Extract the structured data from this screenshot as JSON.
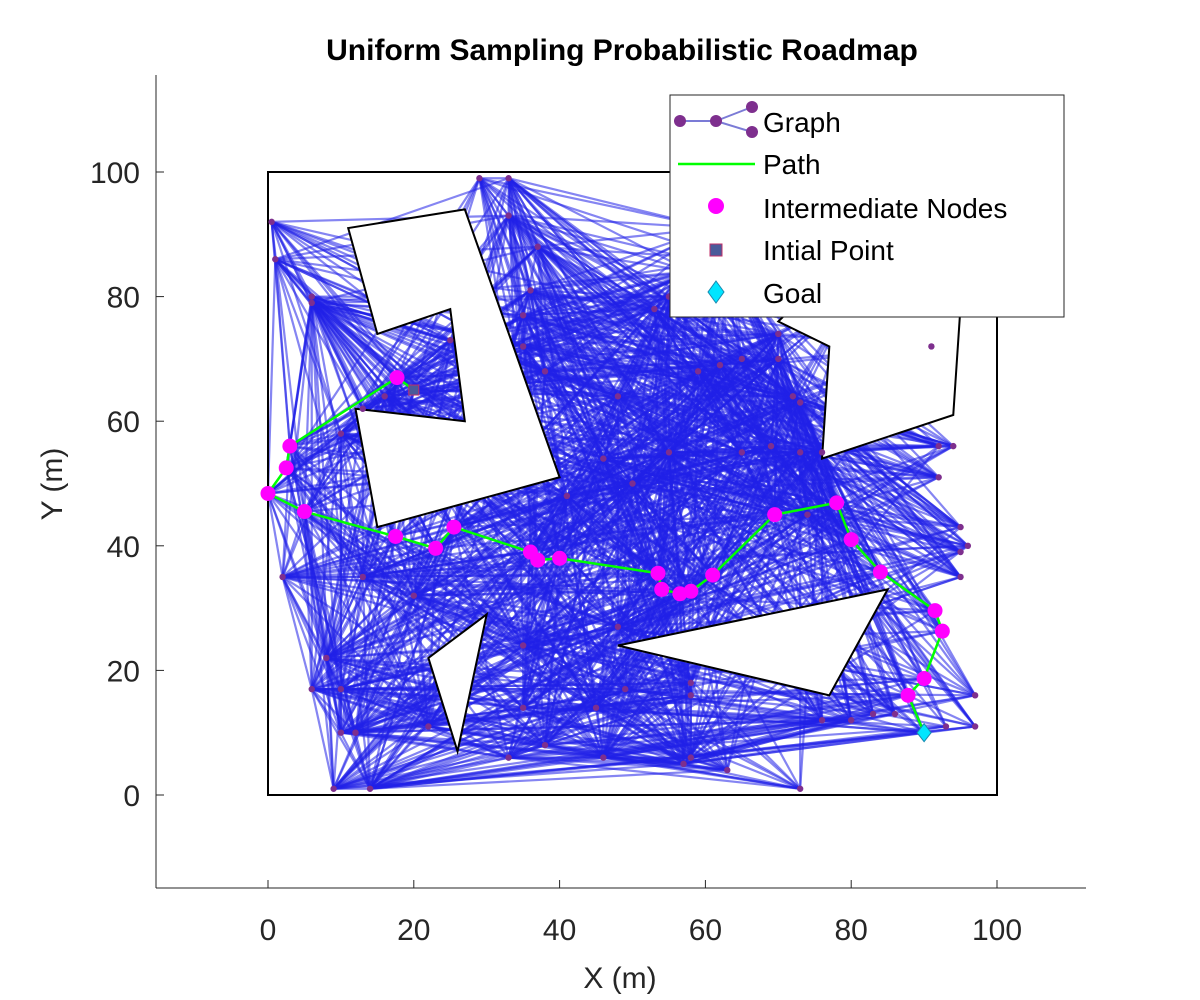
{
  "chart_data": {
    "type": "scatter",
    "title": "Uniform Sampling Probabilistic Roadmap",
    "xlabel": "X (m)",
    "ylabel": "Y (m)",
    "xlim": [
      -15,
      112
    ],
    "ylim": [
      -15,
      116
    ],
    "xticks": [
      "0",
      "20",
      "40",
      "60",
      "80",
      "100"
    ],
    "yticks": [
      "0",
      "20",
      "40",
      "60",
      "80",
      "100"
    ],
    "xtick_values": [
      0,
      20,
      40,
      60,
      80,
      100
    ],
    "ytick_values": [
      0,
      20,
      40,
      60,
      80,
      100
    ],
    "grid": false,
    "legend_position": "top-right",
    "legend": [
      "Graph",
      "Path",
      "Intermediate Nodes",
      "Intial Point",
      "Goal"
    ],
    "colors": {
      "graph_edges": "#2020e8",
      "graph_nodes": "#7e2f8e",
      "path": "#00ff00",
      "intermediate_nodes": "#ff00ff",
      "initial_point": "#4a5a9a",
      "goal": "#00e5ff",
      "obstacles": "#000000"
    },
    "boundary": [
      [
        0,
        0
      ],
      [
        100,
        0
      ],
      [
        100,
        100
      ],
      [
        0,
        100
      ]
    ],
    "obstacles": [
      [
        [
          11,
          91
        ],
        [
          27,
          94
        ],
        [
          40,
          51
        ],
        [
          15,
          43
        ],
        [
          12,
          62
        ],
        [
          27,
          60
        ],
        [
          25,
          78
        ],
        [
          15,
          74
        ]
      ],
      [
        [
          85,
          33
        ],
        [
          48,
          24
        ],
        [
          77,
          16
        ]
      ],
      [
        [
          30,
          29
        ],
        [
          22,
          22
        ],
        [
          26,
          7
        ]
      ],
      [
        [
          87,
          96
        ],
        [
          96,
          96
        ],
        [
          94,
          61
        ],
        [
          76,
          54
        ],
        [
          77,
          72
        ],
        [
          70,
          76
        ]
      ]
    ],
    "initial_point": [
      20,
      65
    ],
    "goal": [
      90,
      10
    ],
    "path": [
      [
        20,
        65
      ],
      [
        17.7,
        67
      ],
      [
        3,
        56
      ],
      [
        2.5,
        52.5
      ],
      [
        0,
        48.4
      ],
      [
        5,
        45.5
      ],
      [
        17.5,
        41.5
      ],
      [
        23,
        39.6
      ],
      [
        25.5,
        43
      ],
      [
        36,
        39
      ],
      [
        37,
        37.7
      ],
      [
        40,
        38
      ],
      [
        53.5,
        35.6
      ],
      [
        54,
        33
      ],
      [
        56.5,
        32.3
      ],
      [
        58,
        32.7
      ],
      [
        61,
        35.3
      ],
      [
        69.5,
        45
      ],
      [
        78,
        46.9
      ],
      [
        80,
        41
      ],
      [
        84,
        35.8
      ],
      [
        91.5,
        29.6
      ],
      [
        92.5,
        26.3
      ],
      [
        90,
        18.7
      ],
      [
        87.8,
        16
      ],
      [
        90,
        10
      ]
    ],
    "intermediate_nodes": [
      [
        17.7,
        67
      ],
      [
        3,
        56
      ],
      [
        2.5,
        52.5
      ],
      [
        0,
        48.4
      ],
      [
        5,
        45.5
      ],
      [
        17.5,
        41.5
      ],
      [
        23,
        39.6
      ],
      [
        25.5,
        43
      ],
      [
        36,
        39
      ],
      [
        37,
        37.7
      ],
      [
        40,
        38
      ],
      [
        53.5,
        35.6
      ],
      [
        54,
        33
      ],
      [
        56.5,
        32.3
      ],
      [
        58,
        32.7
      ],
      [
        61,
        35.3
      ],
      [
        69.5,
        45
      ],
      [
        78,
        46.9
      ],
      [
        80,
        41
      ],
      [
        84,
        35.8
      ],
      [
        91.5,
        29.6
      ],
      [
        92.5,
        26.3
      ],
      [
        90,
        18.7
      ],
      [
        87.8,
        16
      ]
    ],
    "graph_nodes": [
      [
        0.5,
        92
      ],
      [
        1,
        86
      ],
      [
        6,
        80
      ],
      [
        6,
        79
      ],
      [
        2,
        35
      ],
      [
        6,
        17
      ],
      [
        10,
        17
      ],
      [
        8,
        22
      ],
      [
        10,
        10
      ],
      [
        12,
        10
      ],
      [
        9,
        1
      ],
      [
        14,
        1
      ],
      [
        10,
        58
      ],
      [
        13,
        35
      ],
      [
        13,
        62
      ],
      [
        16,
        64
      ],
      [
        25,
        73
      ],
      [
        22,
        11
      ],
      [
        20,
        32
      ],
      [
        29,
        99
      ],
      [
        33,
        99
      ],
      [
        33,
        93
      ],
      [
        37,
        88
      ],
      [
        36,
        81
      ],
      [
        35,
        77
      ],
      [
        35,
        72
      ],
      [
        38,
        68
      ],
      [
        33,
        6
      ],
      [
        35,
        14
      ],
      [
        35,
        24
      ],
      [
        38,
        8
      ],
      [
        45,
        14
      ],
      [
        46,
        6
      ],
      [
        48,
        27
      ],
      [
        49,
        17
      ],
      [
        46,
        54
      ],
      [
        48,
        64
      ],
      [
        50,
        50
      ],
      [
        55,
        55
      ],
      [
        41,
        48
      ],
      [
        53,
        78
      ],
      [
        59,
        68
      ],
      [
        62,
        69
      ],
      [
        69,
        56
      ],
      [
        70,
        74
      ],
      [
        70,
        70
      ],
      [
        72,
        64
      ],
      [
        73,
        63
      ],
      [
        73,
        55
      ],
      [
        76,
        55
      ],
      [
        74,
        45
      ],
      [
        61,
        91
      ],
      [
        63,
        86
      ],
      [
        55,
        80
      ],
      [
        58,
        84
      ],
      [
        57,
        5
      ],
      [
        58,
        6
      ],
      [
        65,
        70
      ],
      [
        65,
        55
      ],
      [
        58,
        18
      ],
      [
        58,
        16
      ],
      [
        73,
        1
      ],
      [
        80,
        80
      ],
      [
        91,
        72
      ],
      [
        92,
        56
      ],
      [
        94,
        56
      ],
      [
        92,
        51
      ],
      [
        95,
        43
      ],
      [
        96,
        40
      ],
      [
        95,
        39
      ],
      [
        95,
        35
      ],
      [
        93,
        11
      ],
      [
        97,
        11
      ],
      [
        97,
        16
      ],
      [
        83,
        13
      ],
      [
        86,
        13
      ],
      [
        63,
        4
      ],
      [
        76,
        12
      ],
      [
        80,
        12
      ]
    ],
    "edge_count": 1600
  }
}
